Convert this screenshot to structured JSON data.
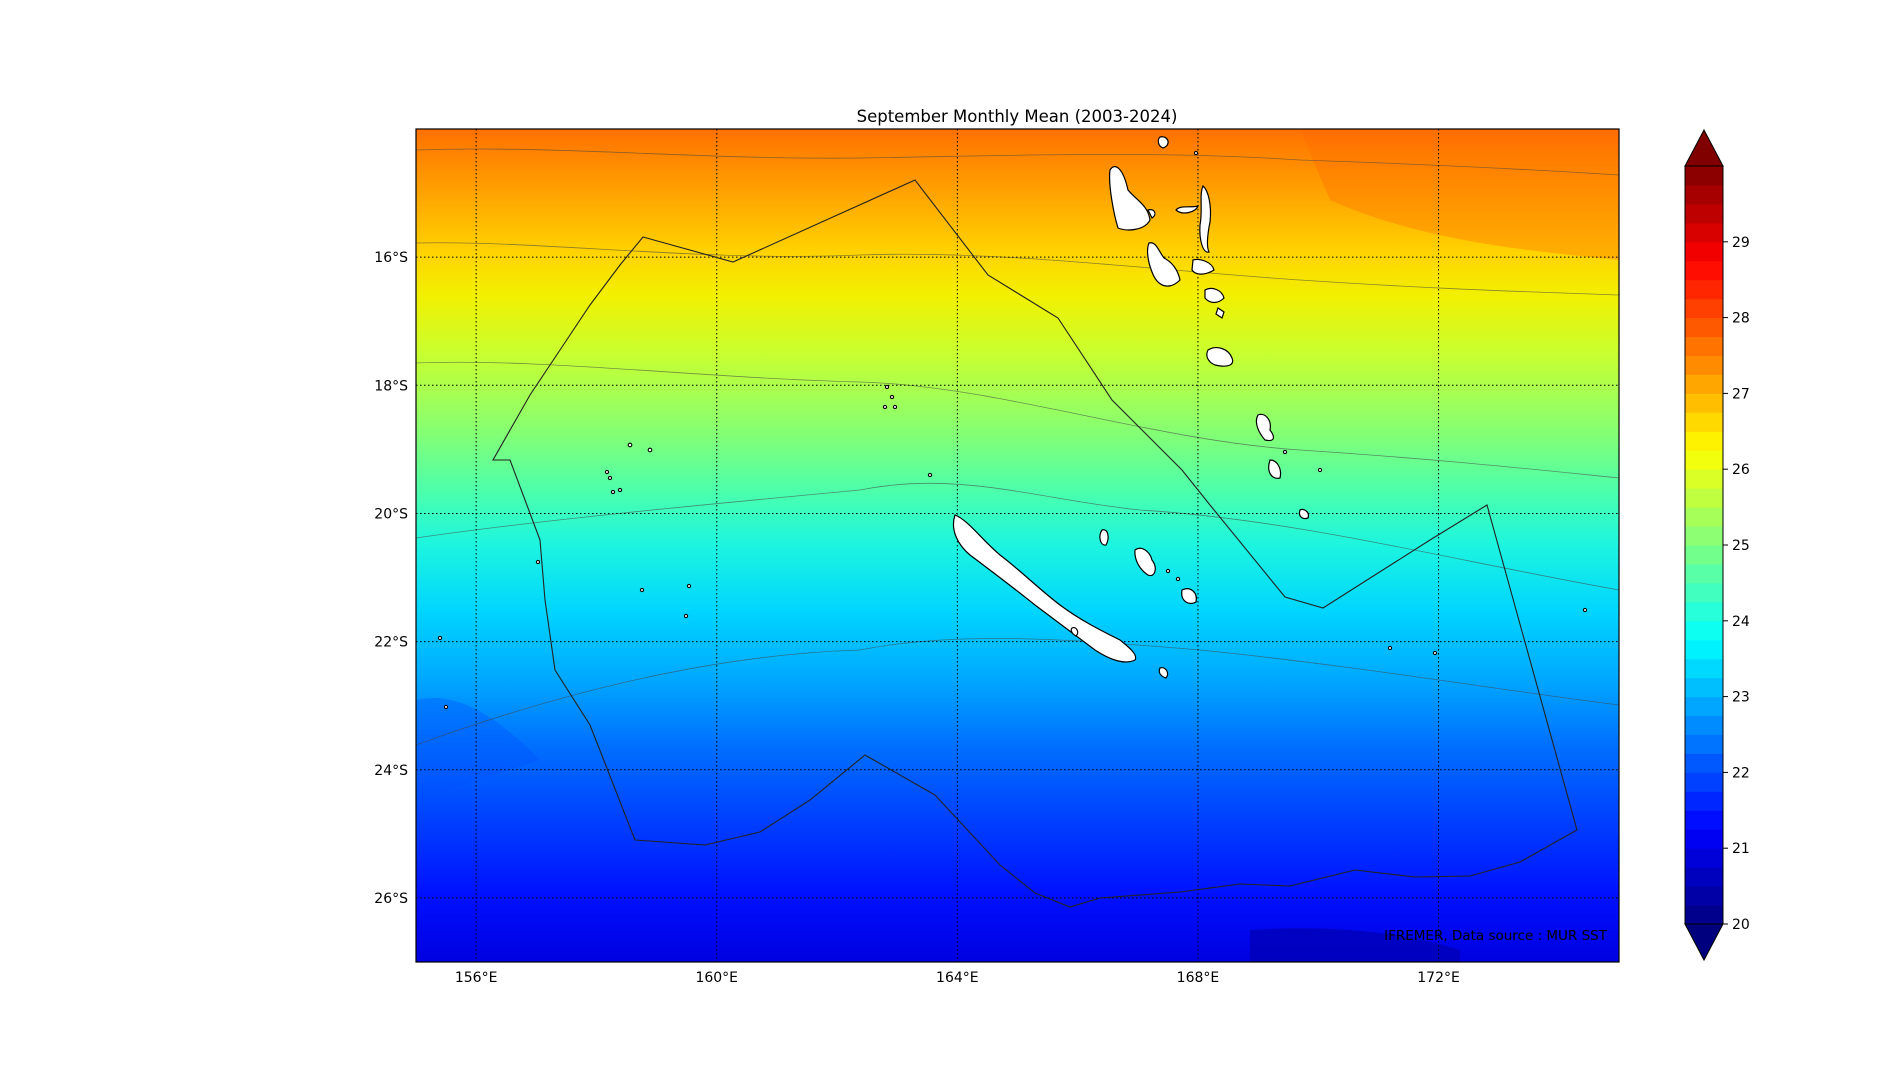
{
  "map": {
    "title": "September Monthly Mean (2003-2024)",
    "credit": "IFREMER, Data source : MUR SST",
    "lon_range": [
      155,
      175
    ],
    "lat_range": [
      -27,
      -14
    ],
    "lon_ticks": [
      {
        "value": 156,
        "label": "156°E"
      },
      {
        "value": 160,
        "label": "160°E"
      },
      {
        "value": 164,
        "label": "164°E"
      },
      {
        "value": 168,
        "label": "168°E"
      },
      {
        "value": 172,
        "label": "172°E"
      }
    ],
    "lat_ticks": [
      {
        "value": -16,
        "label": "16°S"
      },
      {
        "value": -18,
        "label": "18°S"
      },
      {
        "value": -20,
        "label": "20°S"
      },
      {
        "value": -22,
        "label": "22°S"
      },
      {
        "value": -24,
        "label": "24°S"
      },
      {
        "value": -26,
        "label": "26°S"
      }
    ],
    "grid": true
  },
  "colorbar": {
    "vmin": 20,
    "vmax": 30,
    "ticks": [
      {
        "value": 20,
        "label": "20"
      },
      {
        "value": 21,
        "label": "21"
      },
      {
        "value": 22,
        "label": "22"
      },
      {
        "value": 23,
        "label": "23"
      },
      {
        "value": 24,
        "label": "24"
      },
      {
        "value": 25,
        "label": "25"
      },
      {
        "value": 26,
        "label": "26"
      },
      {
        "value": 27,
        "label": "27"
      },
      {
        "value": 28,
        "label": "28"
      },
      {
        "value": 29,
        "label": "29"
      }
    ],
    "extend": "both",
    "colormap": "jet"
  },
  "colors": {
    "land": "#ffffff",
    "coast": "#000000",
    "eez": "#222222",
    "grid": "#000000"
  }
}
